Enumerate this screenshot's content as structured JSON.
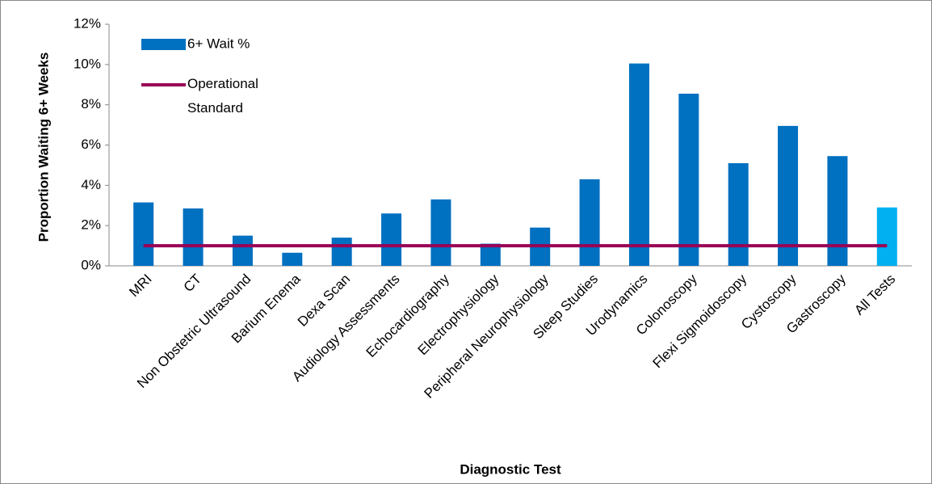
{
  "chart_data": {
    "type": "bar_line",
    "x_label": "Diagnostic Test",
    "y_label": "Proportion Waiting 6+ Weeks",
    "categories": [
      "MRI",
      "CT",
      "Non Obstetric Ultrasound",
      "Barium Enema",
      "Dexa Scan",
      "Audiology Assessments",
      "Echocardiography",
      "Electrophysiology",
      "Peripheral Neurophysiology",
      "Sleep Studies",
      "Urodynamics",
      "Colonoscopy",
      "Flexi Sigmoidoscopy",
      "Cystoscopy",
      "Gastroscopy",
      "All Tests"
    ],
    "series": [
      {
        "name": "6+ Wait %",
        "type": "bar",
        "color": "#0070c0",
        "colors": [
          "#0070c0",
          "#0070c0",
          "#0070c0",
          "#0070c0",
          "#0070c0",
          "#0070c0",
          "#0070c0",
          "#0070c0",
          "#0070c0",
          "#0070c0",
          "#0070c0",
          "#0070c0",
          "#0070c0",
          "#0070c0",
          "#0070c0",
          "#00b0f0"
        ],
        "values": [
          3.15,
          2.85,
          1.5,
          0.65,
          1.4,
          2.6,
          3.3,
          1.1,
          1.9,
          4.3,
          10.05,
          8.55,
          5.1,
          6.95,
          5.45,
          2.9
        ]
      },
      {
        "name": "Operational Standard",
        "type": "line",
        "color": "#990055",
        "values": [
          1,
          1,
          1,
          1,
          1,
          1,
          1,
          1,
          1,
          1,
          1,
          1,
          1,
          1,
          1,
          1
        ]
      }
    ],
    "ylim": [
      0,
      12
    ],
    "yticks": [
      {
        "value": 0,
        "label": "0%"
      },
      {
        "value": 2,
        "label": "2%"
      },
      {
        "value": 4,
        "label": "4%"
      },
      {
        "value": 6,
        "label": "6%"
      },
      {
        "value": 8,
        "label": "8%"
      },
      {
        "value": 10,
        "label": "10%"
      },
      {
        "value": 12,
        "label": "12%"
      }
    ],
    "grid": false,
    "legend": "top-left"
  }
}
